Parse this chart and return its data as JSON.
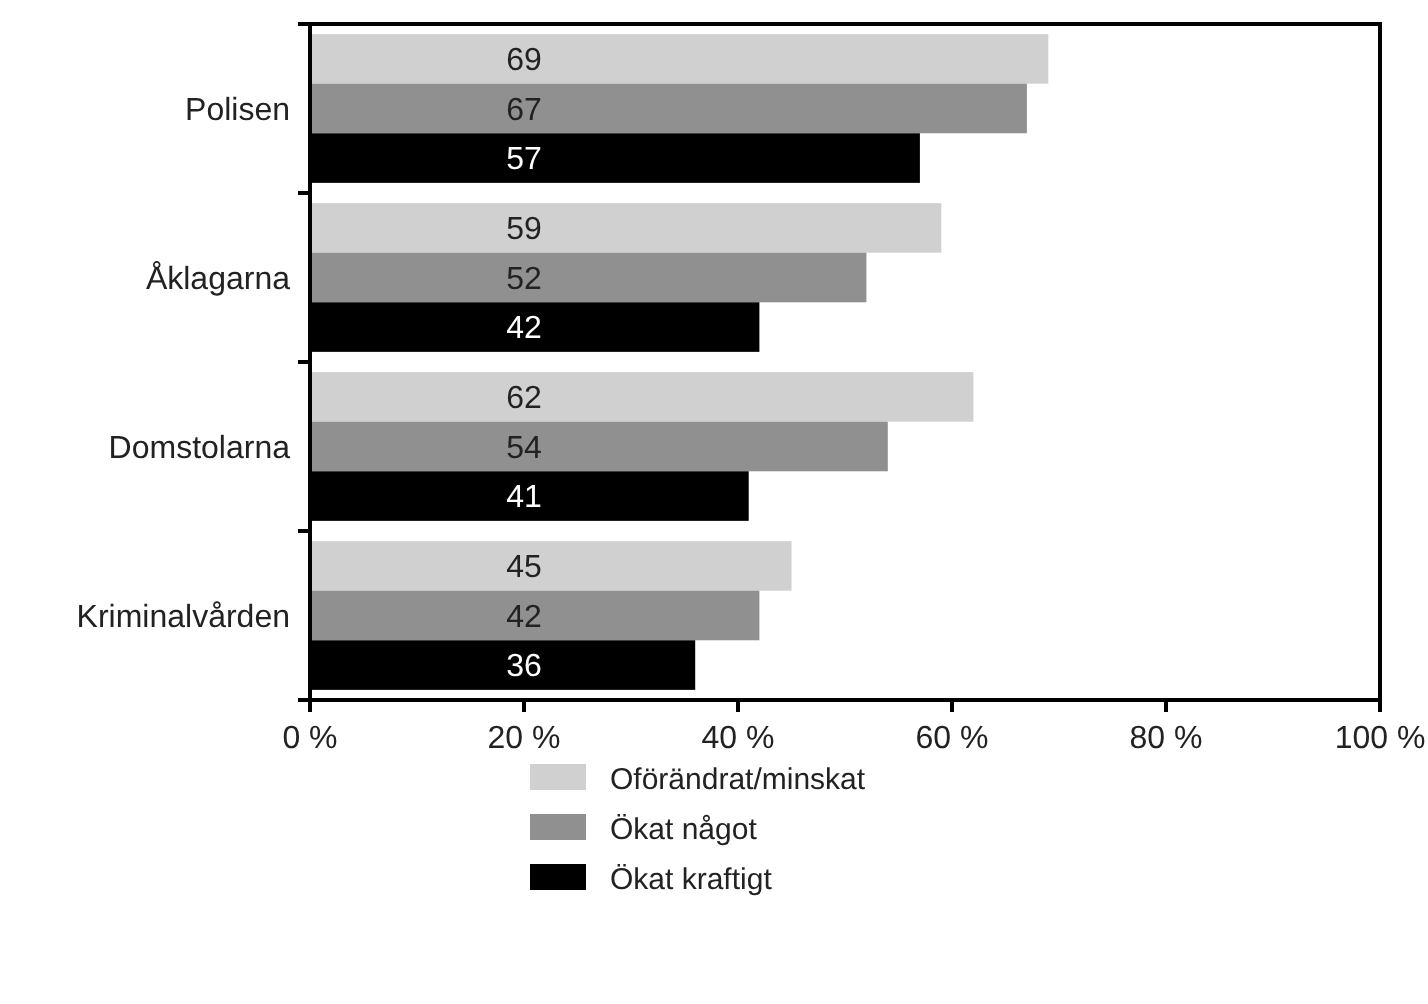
{
  "chart_data": {
    "type": "bar",
    "orientation": "horizontal",
    "categories": [
      "Polisen",
      "Åklagarna",
      "Domstolarna",
      "Kriminalvården"
    ],
    "series": [
      {
        "name": "Oförändrat/minskat",
        "color": "#d0d0d0",
        "values": [
          69,
          59,
          62,
          45
        ]
      },
      {
        "name": "Ökat något",
        "color": "#909090",
        "values": [
          67,
          52,
          54,
          42
        ]
      },
      {
        "name": "Ökat kraftigt",
        "color": "#000000",
        "values": [
          57,
          42,
          41,
          36
        ]
      }
    ],
    "xlim": [
      0,
      100
    ],
    "xticks": [
      {
        "value": 0,
        "label": "0 %"
      },
      {
        "value": 20,
        "label": "20 %"
      },
      {
        "value": 40,
        "label": "40 %"
      },
      {
        "value": 60,
        "label": "60 %"
      },
      {
        "value": 80,
        "label": "80 %"
      },
      {
        "value": 100,
        "label": "100 %"
      }
    ],
    "data_labels": true,
    "legend": "bottom",
    "grid": false
  }
}
